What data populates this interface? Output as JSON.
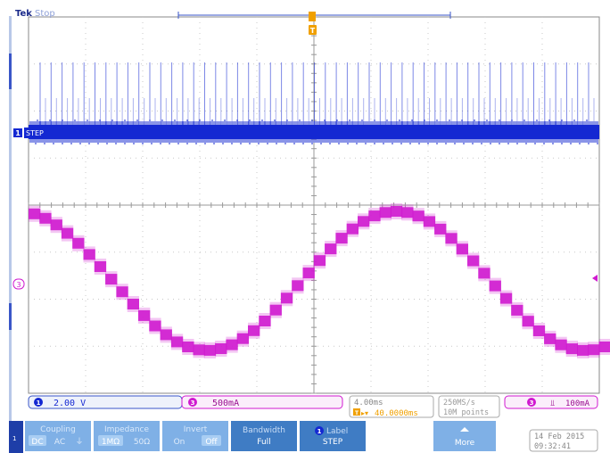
{
  "header": {
    "brand": "Tek",
    "run_state": "Stop"
  },
  "channel1": {
    "number": "1",
    "label": "STEP",
    "scale": "2.00 V",
    "color": "#1428d2"
  },
  "channel3": {
    "number": "3",
    "scale": "500mA",
    "color": "#d01ad0"
  },
  "trigger": {
    "marker": "T",
    "channel": "3",
    "level": "100mA",
    "slope_symbol": "⫫"
  },
  "timebase": {
    "scale": "4.00ms",
    "position_marker": "T",
    "position": "40.0000ms",
    "sample_rate": "250MS/s",
    "record_length": "10M points"
  },
  "datetime": {
    "date": "14 Feb  2015",
    "time": "09:32:41"
  },
  "menu": {
    "side_number": "1",
    "coupling": {
      "title": "Coupling",
      "options": [
        "DC",
        "AC",
        "⏚"
      ],
      "selected": "DC"
    },
    "impedance": {
      "title": "Impedance",
      "options": [
        "1MΩ",
        "50Ω"
      ],
      "selected": "1MΩ"
    },
    "invert": {
      "title": "Invert",
      "options": [
        "On",
        "Off"
      ],
      "selected": "Off"
    },
    "bandwidth": {
      "title": "Bandwidth",
      "value": "Full"
    },
    "label": {
      "number": "1",
      "title": "Label",
      "value": "STEP"
    },
    "more": {
      "label": "More"
    }
  },
  "colors": {
    "ch1": "#1428d2",
    "ch3": "#d01ad0",
    "trigger": "#f0a000",
    "menu_button": "#6ea6e0",
    "menu_button_dark": "#3f7cc4"
  }
}
